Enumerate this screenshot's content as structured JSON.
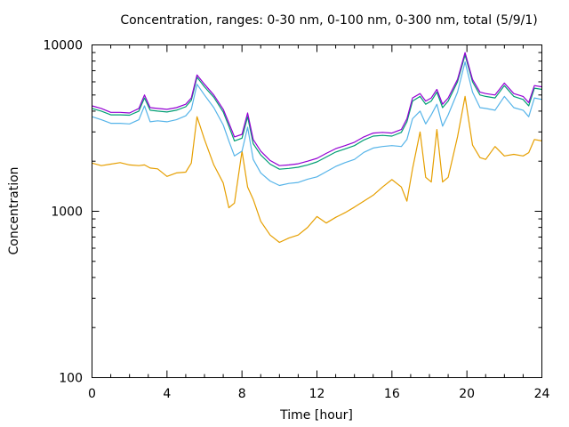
{
  "chart_data": {
    "type": "line",
    "title": "Concentration, ranges: 0-30 nm, 0-100 nm, 0-300 nm, total (5/9/1)",
    "xlabel": "Time [hour]",
    "ylabel": "Concentration",
    "xlim": [
      0,
      24
    ],
    "ylim": [
      100,
      10000
    ],
    "yscale": "log",
    "grid": false,
    "legend": "none",
    "x_ticks": [
      0,
      4,
      8,
      12,
      16,
      20,
      24
    ],
    "x_tick_labels": [
      "0",
      "4",
      "8",
      "12",
      "16",
      "20",
      "24"
    ],
    "y_ticks": [
      100,
      1000,
      10000
    ],
    "y_tick_labels": [
      "100",
      "1000",
      "10000"
    ],
    "x": [
      0,
      0.5,
      1,
      1.5,
      2,
      2.5,
      2.8,
      3.1,
      3.5,
      4,
      4.5,
      5,
      5.3,
      5.6,
      6,
      6.5,
      7,
      7.3,
      7.6,
      8,
      8.3,
      8.6,
      9,
      9.5,
      10,
      10.5,
      11,
      11.5,
      12,
      12.5,
      13,
      13.5,
      14,
      14.5,
      15,
      15.5,
      16,
      16.5,
      16.8,
      17.1,
      17.5,
      17.8,
      18.1,
      18.4,
      18.7,
      19,
      19.5,
      19.9,
      20.3,
      20.7,
      21,
      21.5,
      22,
      22.5,
      23,
      23.3,
      23.6,
      24
    ],
    "series": [
      {
        "name": "total",
        "color": "#9400d3",
        "values": [
          4300,
          4150,
          3930,
          3930,
          3900,
          4150,
          5000,
          4200,
          4150,
          4100,
          4200,
          4400,
          4800,
          6600,
          5800,
          5000,
          4100,
          3400,
          2800,
          2900,
          3900,
          2700,
          2300,
          2020,
          1880,
          1900,
          1930,
          2000,
          2080,
          2230,
          2380,
          2480,
          2600,
          2800,
          2950,
          2980,
          2950,
          3100,
          3600,
          4800,
          5100,
          4600,
          4800,
          5400,
          4400,
          4800,
          6200,
          9000,
          6200,
          5200,
          5100,
          5000,
          5900,
          5100,
          4900,
          4500,
          5700,
          5600
        ]
      },
      {
        "name": "0-300 nm",
        "color": "#009e73",
        "values": [
          4150,
          4000,
          3800,
          3800,
          3780,
          4000,
          4800,
          4050,
          4000,
          3950,
          4050,
          4250,
          4650,
          6400,
          5600,
          4850,
          3950,
          3250,
          2650,
          2750,
          3700,
          2550,
          2180,
          1920,
          1790,
          1810,
          1840,
          1900,
          1980,
          2120,
          2270,
          2370,
          2480,
          2680,
          2830,
          2860,
          2830,
          2980,
          3450,
          4600,
          4900,
          4400,
          4600,
          5200,
          4200,
          4600,
          6000,
          8700,
          6000,
          5000,
          4900,
          4800,
          5700,
          4900,
          4700,
          4300,
          5500,
          5400
        ]
      },
      {
        "name": "0-100 nm",
        "color": "#56b4e9",
        "values": [
          3700,
          3550,
          3380,
          3380,
          3350,
          3550,
          4300,
          3450,
          3500,
          3450,
          3550,
          3750,
          4100,
          5800,
          5000,
          4200,
          3300,
          2650,
          2150,
          2300,
          3200,
          2050,
          1700,
          1520,
          1430,
          1470,
          1490,
          1560,
          1610,
          1730,
          1860,
          1960,
          2050,
          2260,
          2400,
          2450,
          2480,
          2450,
          2700,
          3600,
          4000,
          3350,
          3800,
          4400,
          3250,
          3800,
          5200,
          7900,
          5200,
          4200,
          4150,
          4050,
          4900,
          4200,
          4050,
          3700,
          4800,
          4700
        ]
      },
      {
        "name": "0-30 nm",
        "color": "#e69f00",
        "values": [
          1950,
          1880,
          1920,
          1960,
          1900,
          1880,
          1900,
          1820,
          1800,
          1620,
          1700,
          1720,
          1950,
          3700,
          2700,
          1900,
          1480,
          1050,
          1120,
          2300,
          1400,
          1180,
          870,
          720,
          650,
          690,
          720,
          800,
          930,
          850,
          920,
          980,
          1060,
          1150,
          1250,
          1400,
          1550,
          1400,
          1150,
          1800,
          3000,
          1600,
          1500,
          3100,
          1500,
          1600,
          2800,
          4900,
          2500,
          2100,
          2050,
          2450,
          2150,
          2200,
          2150,
          2250,
          2700,
          2650
        ]
      }
    ]
  }
}
